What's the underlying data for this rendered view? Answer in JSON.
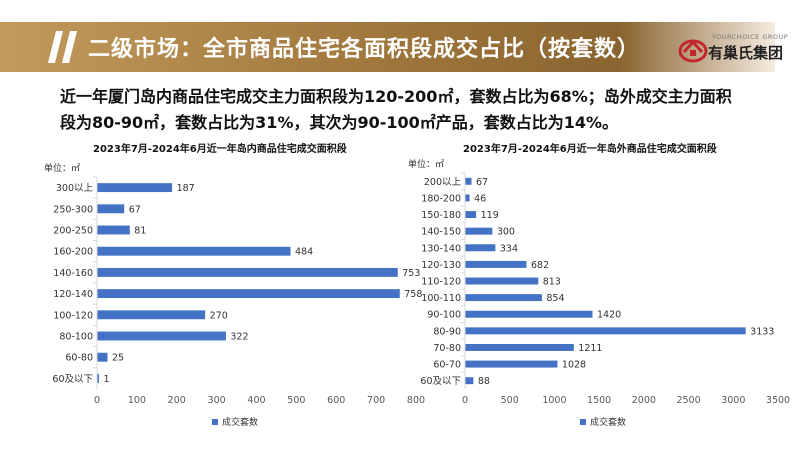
{
  "header": {
    "title": "二级市场：全市商品住宅各面积段成交占比（按套数）",
    "logo_en": "YOURCHOICE GROUP",
    "logo_cn": "有巢氏集团"
  },
  "summary": {
    "line1": "近一年厦门岛内商品住宅成交主力面积段为120-200㎡，套数占比为68%；岛外成交主力面积",
    "line2": "段为80-90㎡，套数占比为31%，其次为90-100㎡产品，套数占比为14%。"
  },
  "colors": {
    "bar": "#4472c4",
    "axis": "#d9d9d9",
    "tick_text": "#595959"
  },
  "chart_data": [
    {
      "type": "bar",
      "orientation": "horizontal",
      "title": "2023年7月-2024年6月近一年岛内商品住宅成交面积段",
      "unit_label": "单位：㎡",
      "categories": [
        "300以上",
        "250-300",
        "200-250",
        "160-200",
        "140-160",
        "120-140",
        "100-120",
        "80-100",
        "60-80",
        "60及以下"
      ],
      "series": [
        {
          "name": "成交套数",
          "values": [
            187,
            67,
            81,
            484,
            753,
            758,
            270,
            322,
            25,
            1
          ]
        }
      ],
      "xlim": [
        0,
        800
      ],
      "xticks": [
        0,
        100,
        200,
        300,
        400,
        500,
        600,
        700,
        800
      ],
      "grid": false,
      "legend": "bottom"
    },
    {
      "type": "bar",
      "orientation": "horizontal",
      "title": "2023年7月-2024年6月近一年岛外商品住宅成交面积段",
      "unit_label": "单位：㎡",
      "categories": [
        "200以上",
        "180-200",
        "150-180",
        "140-150",
        "130-140",
        "120-130",
        "110-120",
        "100-110",
        "90-100",
        "80-90",
        "70-80",
        "60-70",
        "60及以下"
      ],
      "series": [
        {
          "name": "成交套数",
          "values": [
            67,
            46,
            119,
            300,
            334,
            682,
            813,
            854,
            1420,
            3133,
            1211,
            1028,
            88
          ]
        }
      ],
      "xlim": [
        0,
        3500
      ],
      "xticks": [
        0,
        500,
        1000,
        1500,
        2000,
        2500,
        3000,
        3500
      ],
      "grid": false,
      "legend": "bottom"
    }
  ]
}
